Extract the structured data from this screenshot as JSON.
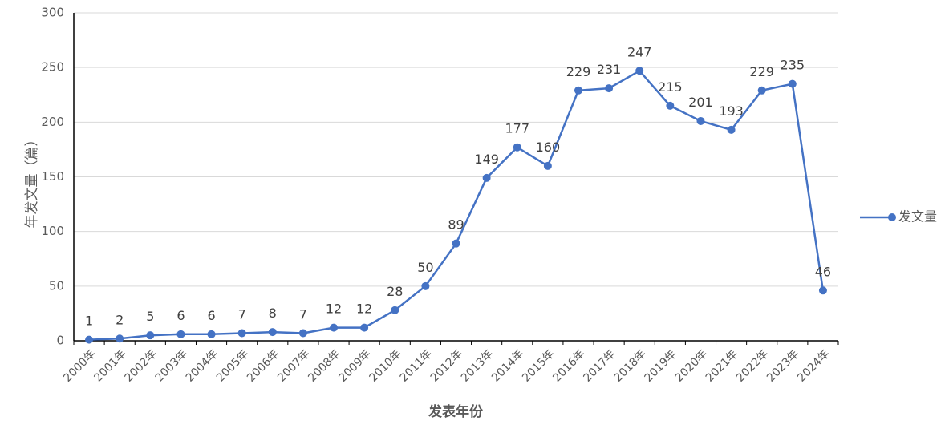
{
  "chart_data": {
    "type": "line",
    "categories": [
      "2000年",
      "2001年",
      "2002年",
      "2003年",
      "2004年",
      "2005年",
      "2006年",
      "2007年",
      "2008年",
      "2009年",
      "2010年",
      "2011年",
      "2012年",
      "2013年",
      "2014年",
      "2015年",
      "2016年",
      "2017年",
      "2018年",
      "2019年",
      "2020年",
      "2021年",
      "2022年",
      "2023年",
      "2024年"
    ],
    "series": [
      {
        "name": "发文量",
        "values": [
          1,
          2,
          5,
          6,
          6,
          7,
          8,
          7,
          12,
          12,
          28,
          50,
          89,
          149,
          177,
          160,
          229,
          231,
          247,
          215,
          201,
          193,
          229,
          235,
          46
        ]
      }
    ],
    "ylim": [
      0,
      300
    ],
    "yticks": [
      0,
      50,
      100,
      150,
      200,
      250,
      300
    ],
    "xlabel": "发表年份",
    "ylabel": "年发文量（篇）",
    "grid": true,
    "legend_position": "right",
    "color": "#4472C4"
  }
}
